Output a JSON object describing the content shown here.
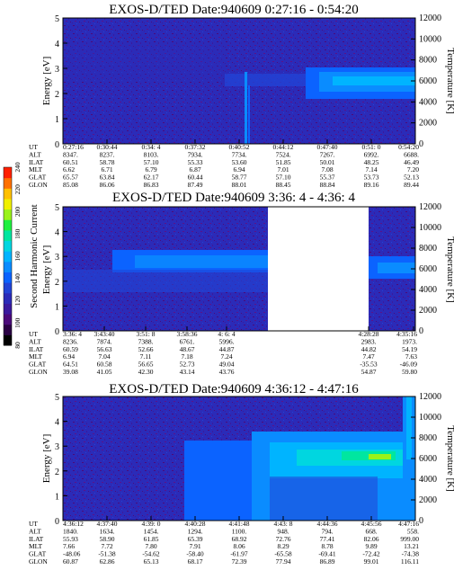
{
  "colorbar": {
    "label": "Second Harmonic Current",
    "ticks": [
      "80",
      "100",
      "120",
      "140",
      "160",
      "180",
      "200",
      "220",
      "240"
    ],
    "colors": [
      "#000000",
      "#2a0044",
      "#4b0a7a",
      "#3a1a9e",
      "#2b2bb8",
      "#2244d6",
      "#0b63ff",
      "#0a8cff",
      "#00b4ff",
      "#00d6e0",
      "#00e6a0",
      "#20f040",
      "#9af21a",
      "#f0f000",
      "#ffc000",
      "#ff7000",
      "#ff2000"
    ]
  },
  "panels": [
    {
      "title": "EXOS-D/TED   Date:940609  0:27:16 - 0:54:20",
      "ylabel_left": "Energy [eV]",
      "ylabel_right": "Temperature [K]",
      "eph_labels": [
        "UT",
        "ALT",
        "ILAT",
        "MLT",
        "GLAT",
        "GLON"
      ],
      "ut": [
        "0:27:16",
        "0:30:44",
        "0:34: 4",
        "0:37:32",
        "0:40:52",
        "0:44:12",
        "0:47:40",
        "0:51: 0",
        "0:54:20"
      ],
      "alt": [
        "8347.",
        "8237.",
        "8103.",
        "7934.",
        "7734.",
        "7524.",
        "7267.",
        "6992.",
        "6688."
      ],
      "ilat": [
        "60.51",
        "58.78",
        "57.10",
        "55.33",
        "53.60",
        "51.85",
        "50.01",
        "48.25",
        "46.49"
      ],
      "mlt": [
        "6.62",
        "6.71",
        "6.79",
        "6.87",
        "6.94",
        "7.01",
        "7.08",
        "7.14",
        "7.20"
      ],
      "glat": [
        "65.57",
        "63.84",
        "62.17",
        "60.44",
        "58.77",
        "57.10",
        "55.37",
        "53.73",
        "52.13"
      ],
      "glon": [
        "85.08",
        "86.06",
        "86.83",
        "87.49",
        "88.01",
        "88.45",
        "88.84",
        "89.16",
        "89.44"
      ]
    },
    {
      "title": "EXOS-D/TED   Date:940609  3:36: 4 - 4:36: 4",
      "ylabel_left": "Energy [eV]",
      "ylabel_right": "Temperature [K]",
      "eph_labels": [
        "UT",
        "ALT",
        "ILAT",
        "MLT",
        "GLAT",
        "GLON"
      ],
      "ut": [
        "3:36: 4",
        "3:43:40",
        "3:51: 8",
        "3:58:36",
        "4: 6: 4",
        "4:28:28",
        "4:35:16"
      ],
      "alt": [
        "8236.",
        "7874.",
        "7388.",
        "6761.",
        "5996.",
        "2983.",
        "1973."
      ],
      "ilat": [
        "60.59",
        "56.63",
        "52.66",
        "48.67",
        "44.87",
        "44.82",
        "54.19"
      ],
      "mlt": [
        "6.94",
        "7.04",
        "7.11",
        "7.18",
        "7.24",
        "7.47",
        "7.63"
      ],
      "glat": [
        "64.51",
        "60.58",
        "56.65",
        "52.73",
        "49.04",
        "-35.53",
        "-46.09"
      ],
      "glon": [
        "39.08",
        "41.05",
        "42.30",
        "43.14",
        "43.76",
        "54.87",
        "59.80"
      ]
    },
    {
      "title": "EXOS-D/TED   Date:940609  4:36:12 - 4:47:16",
      "ylabel_left": "Energy [eV]",
      "ylabel_right": "Temperature [K]",
      "eph_labels": [
        "UT",
        "ALT",
        "ILAT",
        "MLT",
        "GLAT",
        "GLON"
      ],
      "ut": [
        "4:36:12",
        "4:37:40",
        "4:39: 0",
        "4:40:28",
        "4:41:48",
        "4:43: 8",
        "4:44:36",
        "4:45:56",
        "4:47:16"
      ],
      "alt": [
        "1840.",
        "1634.",
        "1454.",
        "1294.",
        "1100.",
        "948.",
        "794.",
        "668.",
        "558."
      ],
      "ilat": [
        "55.93",
        "58.90",
        "61.85",
        "65.39",
        "68.92",
        "72.76",
        "77.41",
        "82.06",
        "999.00"
      ],
      "mlt": [
        "7.66",
        "7.72",
        "7.80",
        "7.91",
        "8.06",
        "8.29",
        "8.78",
        "9.89",
        "13.21"
      ],
      "glat": [
        "-48.06",
        "-51.38",
        "-54.62",
        "-58.40",
        "-61.97",
        "-65.58",
        "-69.41",
        "-72.42",
        "-74.38"
      ],
      "glon": [
        "60.87",
        "62.86",
        "65.13",
        "68.17",
        "72.39",
        "77.94",
        "86.89",
        "99.01",
        "116.11"
      ]
    }
  ],
  "chart_data": [
    {
      "type": "heatmap",
      "title": "EXOS-D/TED   Date:940609  0:27:16 - 0:54:20",
      "xlabel": "UT",
      "ylabel": "Energy [eV]",
      "ylabel_right": "Temperature [K]",
      "x": [
        "0:27:16",
        "0:30:44",
        "0:34: 4",
        "0:37:32",
        "0:40:52",
        "0:44:12",
        "0:47:40",
        "0:51: 0",
        "0:54:20"
      ],
      "ylim": [
        0,
        5
      ],
      "yticks": [
        0,
        1,
        2,
        3,
        4,
        5
      ],
      "ylim_right": [
        0,
        12000
      ],
      "yticks_right": [
        0,
        2000,
        4000,
        6000,
        8000,
        10000,
        12000
      ]
    },
    {
      "type": "heatmap",
      "title": "EXOS-D/TED   Date:940609  3:36: 4 - 4:36: 4",
      "xlabel": "UT",
      "ylabel": "Energy [eV]",
      "ylabel_right": "Temperature [K]",
      "x": [
        "3:36: 4",
        "3:43:40",
        "3:51: 8",
        "3:58:36",
        "4: 6: 4",
        "4:28:28",
        "4:35:16"
      ],
      "ylim": [
        0,
        5
      ],
      "yticks": [
        0,
        1,
        2,
        3,
        4,
        5
      ],
      "ylim_right": [
        0,
        12000
      ],
      "yticks_right": [
        0,
        2000,
        4000,
        6000,
        8000,
        10000,
        12000
      ]
    },
    {
      "type": "heatmap",
      "title": "EXOS-D/TED   Date:940609  4:36:12 - 4:47:16",
      "xlabel": "UT",
      "ylabel": "Energy [eV]",
      "ylabel_right": "Temperature [K]",
      "x": [
        "4:36:12",
        "4:37:40",
        "4:39: 0",
        "4:40:28",
        "4:41:48",
        "4:43: 8",
        "4:44:36",
        "4:45:56",
        "4:47:16"
      ],
      "ylim": [
        0,
        5
      ],
      "yticks": [
        0,
        1,
        2,
        3,
        4,
        5
      ],
      "ylim_right": [
        0,
        12000
      ],
      "yticks_right": [
        0,
        2000,
        4000,
        6000,
        8000,
        10000,
        12000
      ]
    }
  ]
}
